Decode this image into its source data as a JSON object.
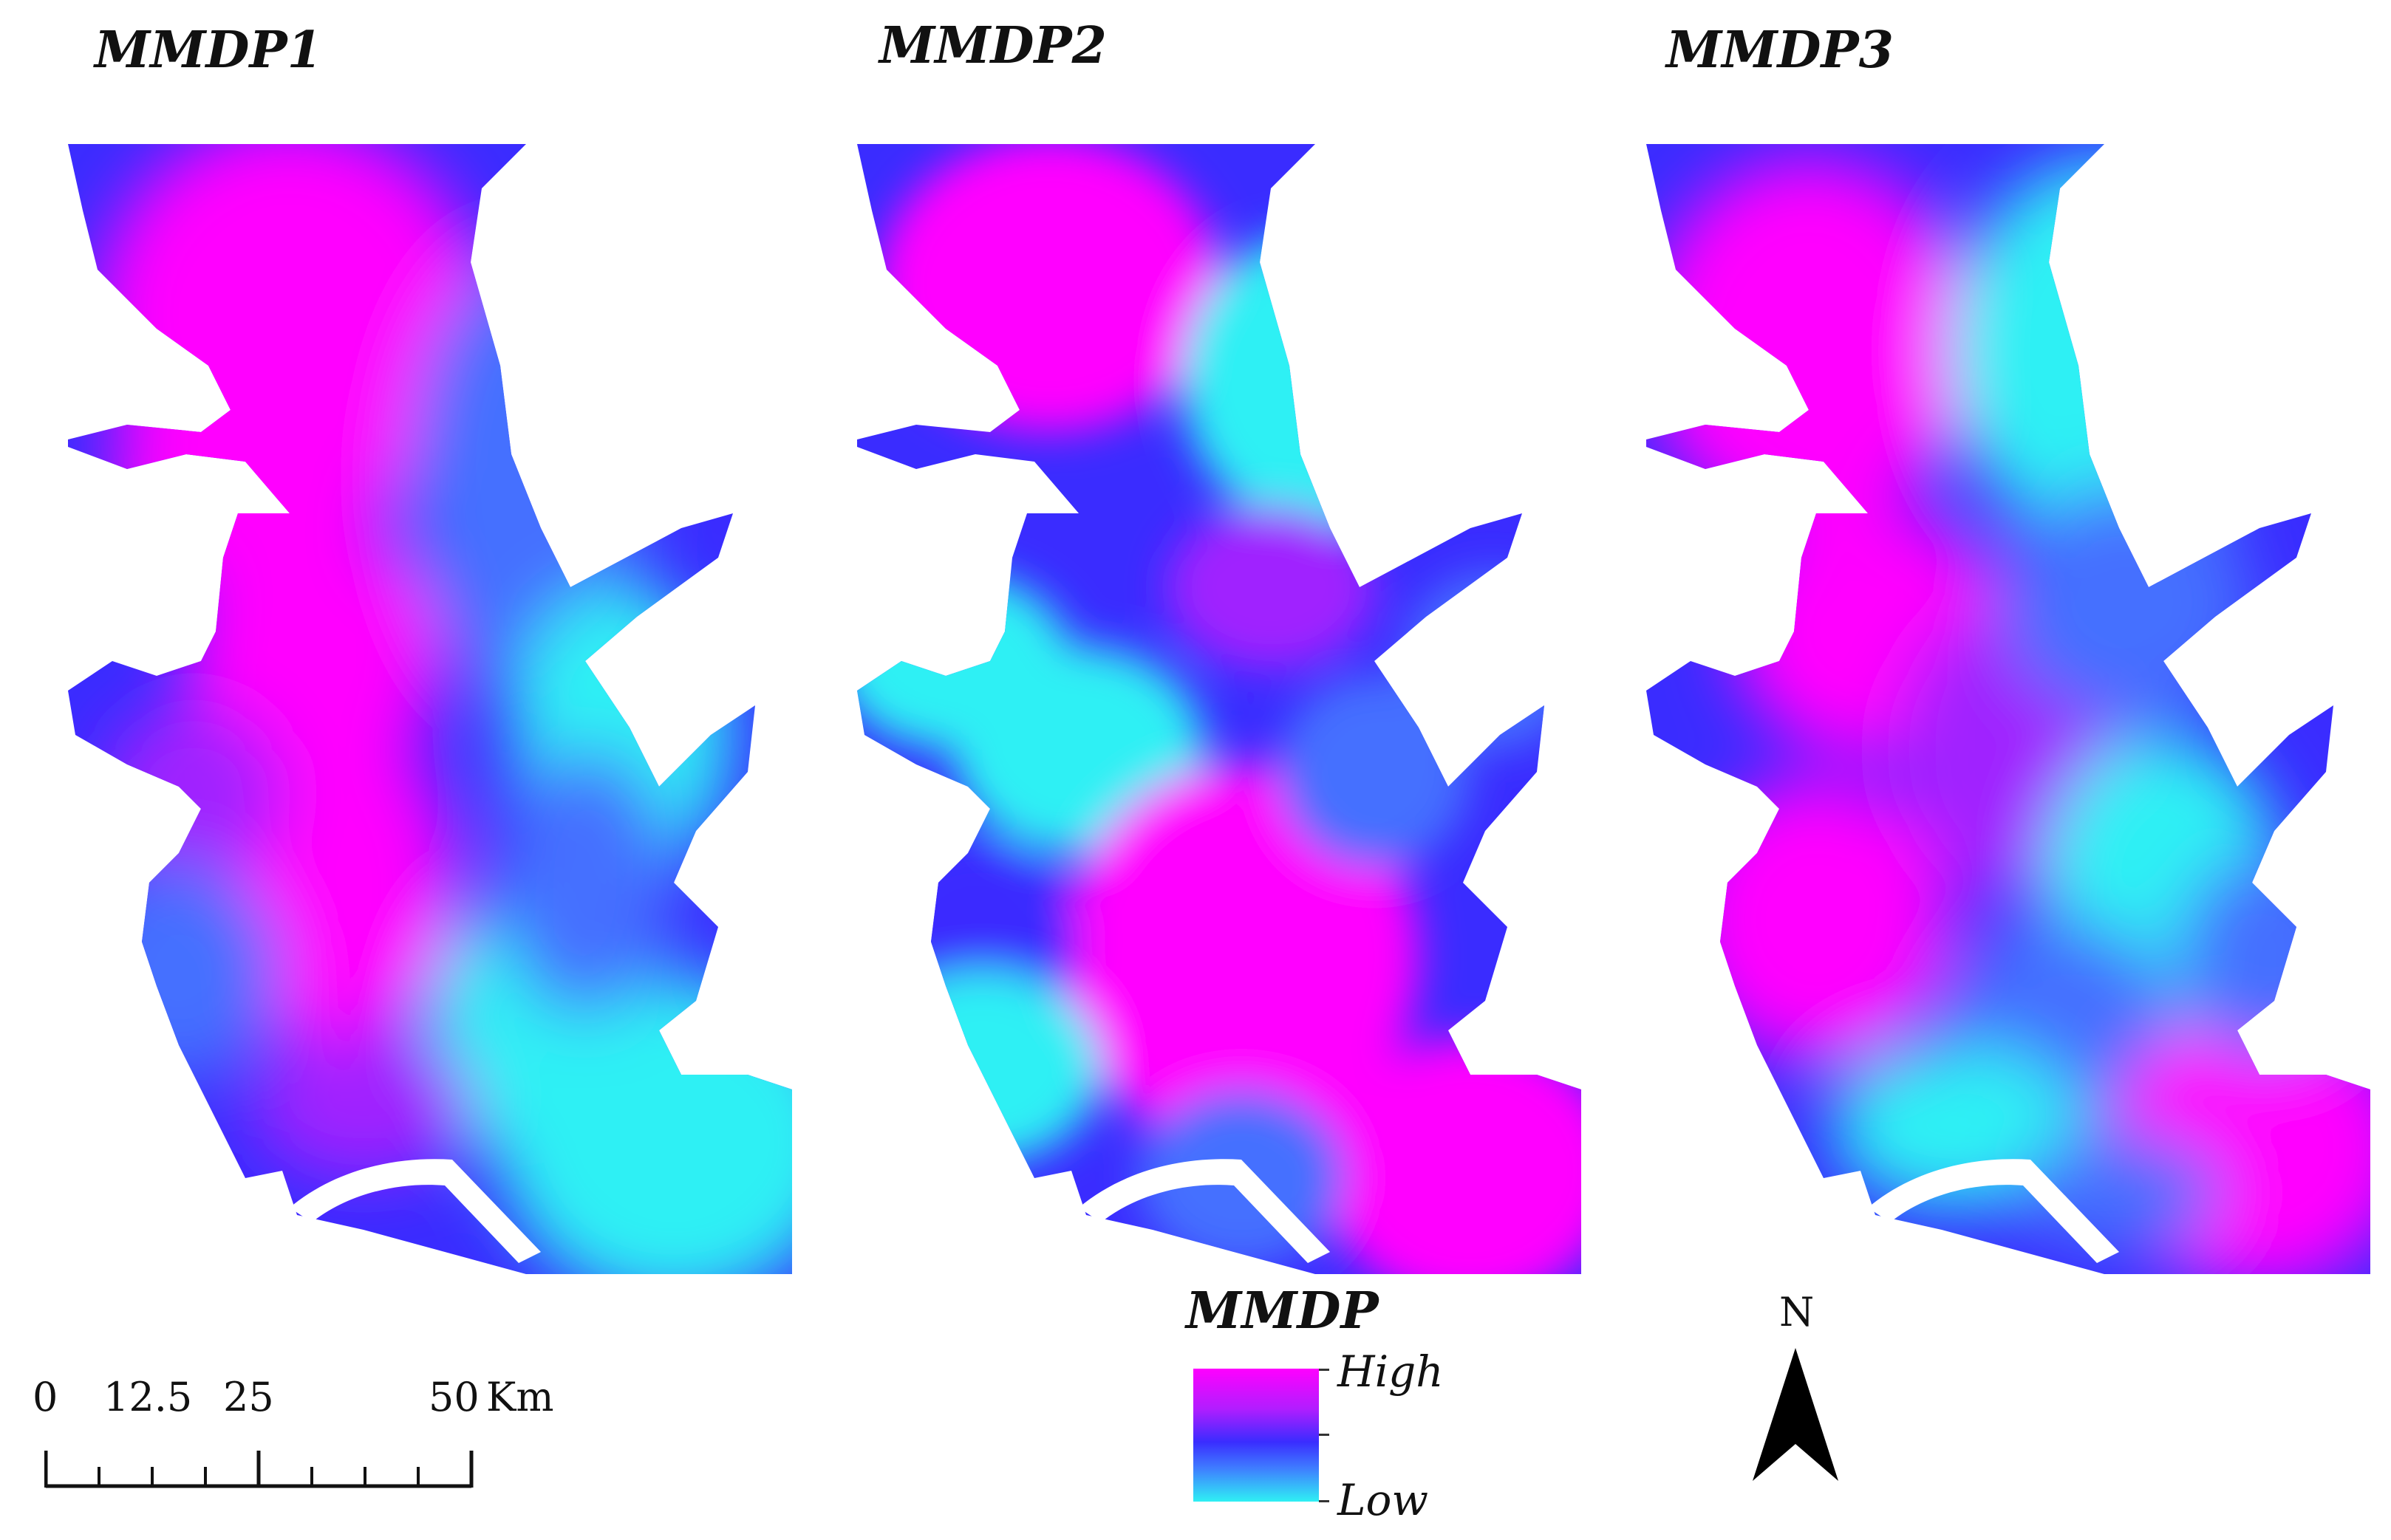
{
  "panels": [
    {
      "title": "MMDP1",
      "variant": 1
    },
    {
      "title": "MMDP2",
      "variant": 2
    },
    {
      "title": "MMDP3",
      "variant": 3
    }
  ],
  "legend": {
    "title": "MMDP",
    "high_label": "High",
    "low_label": "Low",
    "colors": {
      "high": "#ff00ff",
      "mid": "#3a2cff",
      "low": "#2ff0f4"
    }
  },
  "scale_bar": {
    "ticks": [
      "0",
      "12.5",
      "25",
      "50"
    ],
    "unit": "Km"
  },
  "north_arrow": {
    "label": "N",
    "icon": "north-arrow-icon"
  }
}
